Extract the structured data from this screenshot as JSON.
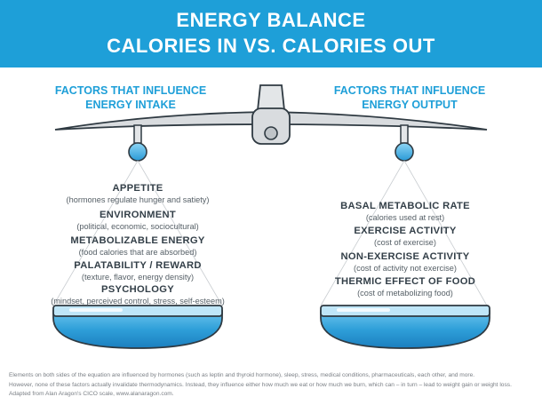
{
  "header": {
    "title_line1": "ENERGY BALANCE",
    "title_line2": "CALORIES IN VS. CALORIES OUT"
  },
  "left": {
    "title_line1": "FACTORS THAT INFLUENCE",
    "title_line2": "ENERGY INTAKE",
    "factors": [
      {
        "name": "APPETITE",
        "desc": "(hormones regulate hunger and satiety)"
      },
      {
        "name": "ENVIRONMENT",
        "desc": "(political, economic, sociocultural)"
      },
      {
        "name": "METABOLIZABLE ENERGY",
        "desc": "(food calories that are absorbed)"
      },
      {
        "name": "PALATABILITY / REWARD",
        "desc": "(texture, flavor, energy density)"
      },
      {
        "name": "PSYCHOLOGY",
        "desc": "(mindset, perceived control, stress, self-esteem)"
      }
    ]
  },
  "right": {
    "title_line1": "FACTORS THAT INFLUENCE",
    "title_line2": "ENERGY OUTPUT",
    "factors": [
      {
        "name": "BASAL METABOLIC RATE",
        "desc": "(calories used at rest)"
      },
      {
        "name": "EXERCISE ACTIVITY",
        "desc": "(cost of exercise)"
      },
      {
        "name": "NON-EXERCISE ACTIVITY",
        "desc": "(cost of activity not exercise)"
      },
      {
        "name": "THERMIC EFFECT OF FOOD",
        "desc": "(cost of metabolizing food)"
      }
    ]
  },
  "footnote": {
    "line1": "Elements on both sides of the equation are influenced by hormones (such as leptin and thyroid hormone), sleep, stress, medical conditions, pharmaceuticals, each other, and more.",
    "line2": "However, none of these factors actually invalidate thermodynamics. Instead, they influence either how much we eat or how much we burn, which can – in turn – lead to weight gain or weight loss.",
    "line3": "Adapted from Alan Aragon's CICO scale, www.alanaragon.com."
  },
  "colors": {
    "accent": "#1e9fd8",
    "pan_blue": "#3aa9e0",
    "scale_gray": "#d4d7da",
    "text_dark": "#333f48"
  }
}
